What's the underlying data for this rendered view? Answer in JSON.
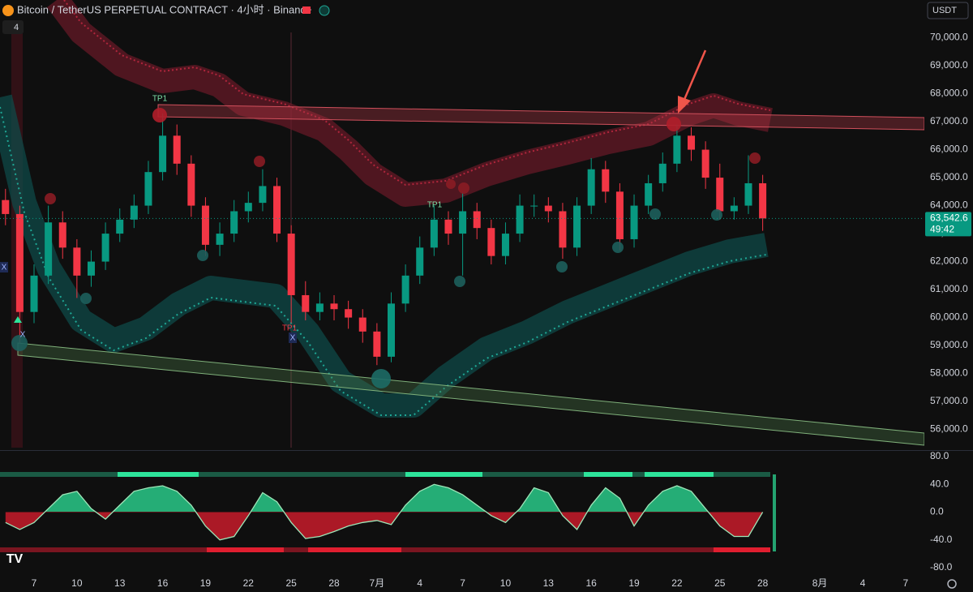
{
  "header": {
    "title": "Bitcoin / TetherUS PERPETUAL CONTRACT · 4小时 · Binance",
    "currency": "USDT",
    "indicator_count": "4"
  },
  "chart_data": [
    {
      "type": "candlestick",
      "categories": [
        null,
        null,
        "7",
        null,
        null,
        "10",
        null,
        null,
        "13",
        null,
        null,
        "16",
        null,
        null,
        "19",
        null,
        null,
        "22",
        null,
        null,
        "25",
        null,
        null,
        "28",
        null,
        null,
        "7月",
        null,
        null,
        "4",
        null,
        null,
        "7",
        null,
        null,
        "10",
        null,
        null,
        "13",
        null,
        null,
        "16",
        null,
        null,
        "19",
        null,
        null,
        "22",
        null,
        null,
        "25",
        null,
        null,
        "28",
        null,
        null,
        null,
        "8月",
        null,
        null,
        "4",
        null,
        null,
        "7",
        null
      ],
      "open": [
        64200,
        63700,
        60200,
        61500,
        63400,
        62500,
        61500,
        62000,
        63000,
        63500,
        64000,
        65200,
        66500,
        65500,
        64000,
        62600,
        63000,
        63800,
        64100,
        64700,
        63000,
        60800,
        60200,
        60500,
        60300,
        60000,
        59500,
        58600,
        60500,
        61500,
        62500,
        63500,
        63000,
        63800,
        63200,
        62200,
        63000,
        64000,
        64000,
        63800,
        62500,
        64000,
        65300,
        64500,
        62800,
        64000,
        64800,
        65500,
        66500,
        66000,
        65000,
        63800,
        64000,
        64800,
        null,
        null,
        null,
        null,
        null,
        null,
        null,
        null,
        null,
        null,
        null
      ],
      "high": [
        64600,
        64000,
        61900,
        64000,
        63800,
        62800,
        62400,
        63400,
        63900,
        64400,
        65600,
        67300,
        66900,
        65800,
        64300,
        63400,
        64200,
        64500,
        65300,
        65000,
        63300,
        61300,
        60900,
        60800,
        60600,
        60300,
        59800,
        60900,
        61900,
        62900,
        64000,
        63800,
        64500,
        64100,
        63500,
        63400,
        64400,
        64400,
        64300,
        64100,
        64300,
        65700,
        65600,
        64800,
        64400,
        65100,
        65900,
        66900,
        66800,
        66300,
        65500,
        64300,
        65800,
        65100,
        null,
        null,
        null,
        null,
        null,
        null,
        null,
        null,
        null,
        null,
        null
      ],
      "low": [
        63300,
        59100,
        59800,
        61200,
        62100,
        60700,
        61100,
        61700,
        62700,
        63200,
        63700,
        64900,
        65100,
        63600,
        62200,
        62200,
        62700,
        63400,
        63800,
        62700,
        59800,
        59900,
        59900,
        59900,
        59600,
        59100,
        58300,
        58400,
        60200,
        61200,
        62200,
        62600,
        61500,
        62800,
        61900,
        61900,
        62700,
        63600,
        63400,
        62100,
        62200,
        63700,
        64100,
        62400,
        62500,
        63700,
        64500,
        65200,
        65600,
        64600,
        63500,
        63500,
        63700,
        63100,
        null,
        null,
        null,
        null,
        null,
        null,
        null,
        null,
        null,
        null,
        null
      ],
      "close": [
        63700,
        60200,
        61500,
        63400,
        62500,
        61500,
        62000,
        63000,
        63500,
        64000,
        65200,
        66500,
        65500,
        64000,
        62600,
        63000,
        63800,
        64100,
        64700,
        63000,
        60800,
        60200,
        60500,
        60300,
        60000,
        59500,
        58600,
        60500,
        61500,
        62500,
        63500,
        63000,
        63800,
        63200,
        62200,
        63000,
        64000,
        64000,
        63800,
        62500,
        64000,
        65300,
        64500,
        62800,
        64000,
        64800,
        65500,
        66500,
        66000,
        65000,
        63800,
        64000,
        64800,
        63542.6,
        null,
        null,
        null,
        null,
        null,
        null,
        null,
        null,
        null,
        null,
        null
      ],
      "up_color": "#089981",
      "down_color": "#f23645",
      "ylim": [
        55350,
        71350
      ],
      "yticks": [
        {
          "value": 56000,
          "label": "56,000.0"
        },
        {
          "value": 57000,
          "label": "57,000.0"
        },
        {
          "value": 58000,
          "label": "58,000.0"
        },
        {
          "value": 59000,
          "label": "59,000.0"
        },
        {
          "value": 60000,
          "label": "60,000.0"
        },
        {
          "value": 61000,
          "label": "61,000.0"
        },
        {
          "value": 62000,
          "label": "62,000.0"
        },
        {
          "value": 63000,
          "label": "63,000.0"
        },
        {
          "value": 64000,
          "label": "64,000.0"
        },
        {
          "value": 65000,
          "label": "65,000.0"
        },
        {
          "value": 66000,
          "label": "66,000.0"
        },
        {
          "value": 67000,
          "label": "67,000.0"
        },
        {
          "value": 68000,
          "label": "68,000.0"
        },
        {
          "value": 69000,
          "label": "69,000.0"
        },
        {
          "value": 70000,
          "label": "70,000.0"
        }
      ],
      "grid": false,
      "last_price": {
        "value": 63542.6,
        "label": "63,542.6"
      },
      "countdown": "49:42",
      "annotations": [
        "TP1",
        "TP1",
        "TP1",
        "X",
        "X",
        "X"
      ]
    },
    {
      "type": "line",
      "values": [
        -15,
        -25,
        -15,
        5,
        25,
        30,
        5,
        -10,
        10,
        30,
        35,
        38,
        30,
        10,
        -20,
        -40,
        -35,
        -5,
        28,
        15,
        -15,
        -38,
        -35,
        -28,
        -20,
        -15,
        -12,
        -18,
        10,
        30,
        40,
        35,
        25,
        10,
        -5,
        -15,
        5,
        35,
        28,
        -5,
        -25,
        10,
        35,
        20,
        -20,
        10,
        30,
        38,
        30,
        5,
        -20,
        -35,
        -35,
        0,
        null,
        null,
        null,
        null,
        null,
        null,
        null,
        null,
        null,
        null,
        null
      ],
      "color": "#9ee6b8",
      "up_fill": "#2de39a",
      "down_fill": "#e01e2f",
      "ylim": [
        -80,
        80
      ],
      "yticks": [
        {
          "value": 80,
          "label": "80.0"
        },
        {
          "value": 40,
          "label": "40.0"
        },
        {
          "value": 0,
          "label": "0.0"
        },
        {
          "value": -40,
          "label": "-40.0"
        },
        {
          "value": -80,
          "label": "-80.0"
        }
      ]
    }
  ]
}
